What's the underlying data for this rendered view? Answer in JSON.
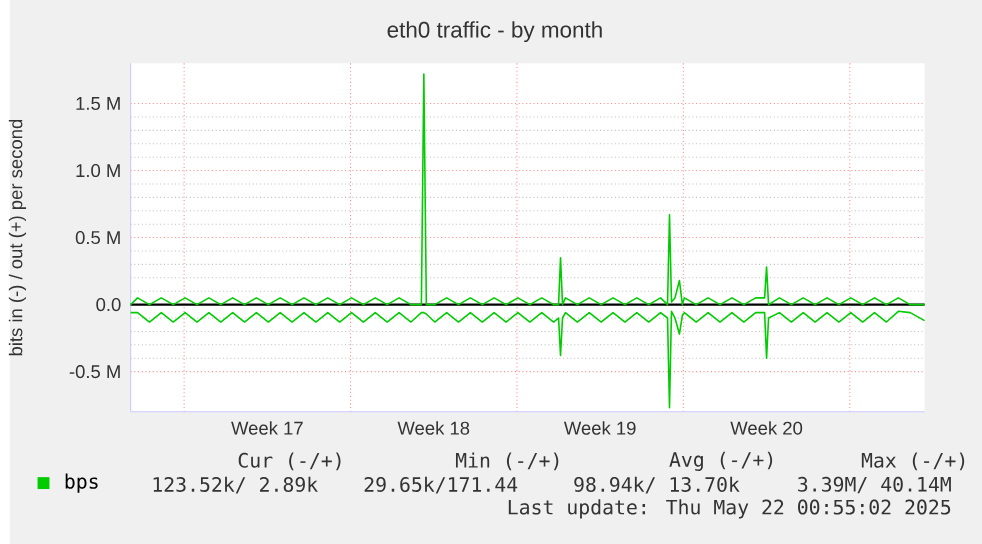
{
  "chart_data": {
    "type": "line",
    "title": "eth0 traffic - by month",
    "ylabel": "bits in (-) / out (+) per second",
    "x": [
      "2025-04-18T18:00",
      "2025-04-19T01:00",
      "2025-04-19T13:00",
      "2025-04-20T01:00",
      "2025-04-20T13:00",
      "2025-04-21T01:00",
      "2025-04-21T13:00",
      "2025-04-22T01:00",
      "2025-04-22T13:00",
      "2025-04-23T01:00",
      "2025-04-23T13:00",
      "2025-04-24T01:00",
      "2025-04-24T13:00",
      "2025-04-25T01:00",
      "2025-04-25T13:00",
      "2025-04-26T01:00",
      "2025-04-26T13:00",
      "2025-04-27T01:00",
      "2025-04-27T13:00",
      "2025-04-28T01:00",
      "2025-04-28T13:00",
      "2025-04-29T01:00",
      "2025-04-29T13:00",
      "2025-04-30T01:00",
      "2025-04-30T13:00",
      "2025-04-30T23:30",
      "2025-05-01T02:00",
      "2025-05-01T04:30",
      "2025-05-01T13:00",
      "2025-05-02T01:00",
      "2025-05-02T13:00",
      "2025-05-03T01:00",
      "2025-05-03T13:00",
      "2025-05-04T01:00",
      "2025-05-04T13:00",
      "2025-05-05T01:00",
      "2025-05-05T13:00",
      "2025-05-06T01:00",
      "2025-05-06T13:00",
      "2025-05-06T18:00",
      "2025-05-06T20:00",
      "2025-05-06T22:00",
      "2025-05-07T01:00",
      "2025-05-07T13:00",
      "2025-05-08T01:00",
      "2025-05-08T13:00",
      "2025-05-09T01:00",
      "2025-05-09T13:00",
      "2025-05-10T01:00",
      "2025-05-10T13:00",
      "2025-05-11T01:00",
      "2025-05-11T08:00",
      "2025-05-11T10:00",
      "2025-05-11T12:00",
      "2025-05-11T15:30",
      "2025-05-11T20:00",
      "2025-05-11T23:00",
      "2025-05-12T01:00",
      "2025-05-12T13:00",
      "2025-05-13T01:00",
      "2025-05-13T13:00",
      "2025-05-14T01:00",
      "2025-05-14T13:00",
      "2025-05-15T01:00",
      "2025-05-15T10:00",
      "2025-05-15T12:00",
      "2025-05-15T14:00",
      "2025-05-16T01:00",
      "2025-05-16T13:00",
      "2025-05-17T01:00",
      "2025-05-17T13:00",
      "2025-05-18T01:00",
      "2025-05-18T13:00",
      "2025-05-19T01:00",
      "2025-05-19T13:00",
      "2025-05-20T01:00",
      "2025-05-20T13:00",
      "2025-05-21T01:00",
      "2025-05-21T13:00",
      "2025-05-22T03:30"
    ],
    "series": [
      {
        "name": "bps",
        "color": "#00cc00",
        "values": [
          0,
          0.05,
          0,
          0.05,
          0,
          0.05,
          0,
          0.05,
          0,
          0.05,
          0,
          0.05,
          0,
          0.05,
          0,
          0.05,
          0,
          0.05,
          0,
          0.05,
          0,
          0.05,
          0,
          0.05,
          0,
          0,
          1.72,
          0,
          0,
          0.05,
          0,
          0.05,
          0,
          0.05,
          0,
          0.05,
          0,
          0.05,
          0,
          0,
          0.35,
          0,
          0.05,
          0,
          0.05,
          0,
          0.05,
          0,
          0.05,
          0,
          0.05,
          0,
          0.67,
          0.02,
          0.05,
          0.18,
          0,
          0.05,
          0,
          0.05,
          0,
          0.05,
          0,
          0.05,
          0.05,
          0.28,
          0,
          0.05,
          0,
          0.05,
          0,
          0.05,
          0,
          0.05,
          0,
          0.05,
          0,
          0.05,
          0,
          0
        ]
      },
      {
        "color": "#00cc00",
        "values": [
          -0.06,
          -0.06,
          -0.13,
          -0.06,
          -0.13,
          -0.06,
          -0.13,
          -0.06,
          -0.13,
          -0.06,
          -0.13,
          -0.06,
          -0.13,
          -0.06,
          -0.13,
          -0.06,
          -0.13,
          -0.06,
          -0.13,
          -0.06,
          -0.13,
          -0.06,
          -0.13,
          -0.06,
          -0.13,
          -0.06,
          -0.06,
          -0.07,
          -0.13,
          -0.06,
          -0.13,
          -0.06,
          -0.13,
          -0.06,
          -0.13,
          -0.06,
          -0.13,
          -0.06,
          -0.13,
          -0.1,
          -0.38,
          -0.1,
          -0.06,
          -0.13,
          -0.06,
          -0.13,
          -0.06,
          -0.13,
          -0.06,
          -0.13,
          -0.06,
          -0.1,
          -0.77,
          -0.05,
          -0.1,
          -0.22,
          -0.08,
          -0.06,
          -0.13,
          -0.06,
          -0.13,
          -0.06,
          -0.13,
          -0.06,
          -0.06,
          -0.4,
          -0.1,
          -0.06,
          -0.13,
          -0.06,
          -0.13,
          -0.06,
          -0.13,
          -0.06,
          -0.13,
          -0.06,
          -0.13,
          -0.05,
          -0.06,
          -0.12
        ]
      }
    ],
    "xlim": [
      "2025-04-18T18:00",
      "2025-05-22T03:30"
    ],
    "xticks": [
      {
        "value": "2025-04-21",
        "label": null
      },
      {
        "value": "2025-04-24T12:00",
        "label": "Week 17"
      },
      {
        "value": "2025-04-28",
        "label": null
      },
      {
        "value": "2025-05-01T12:00",
        "label": "Week 18"
      },
      {
        "value": "2025-05-05",
        "label": null
      },
      {
        "value": "2025-05-08T12:00",
        "label": "Week 19"
      },
      {
        "value": "2025-05-12",
        "label": null
      },
      {
        "value": "2025-05-15T12:00",
        "label": "Week 20"
      },
      {
        "value": "2025-05-19",
        "label": null
      }
    ],
    "ylim": [
      -0.8,
      1.8
    ],
    "yticks": [
      {
        "value": -0.5,
        "label": "-0.5 M"
      },
      {
        "value": 0,
        "label": "0.0"
      },
      {
        "value": 0.5,
        "label": "0.5 M"
      },
      {
        "value": 1,
        "label": "1.0 M"
      },
      {
        "value": 1.5,
        "label": "1.5 M"
      }
    ],
    "ref_lines": [
      {
        "axis": "y",
        "value": 0,
        "color": "#000000"
      }
    ],
    "grid": true,
    "legend": "bottom left",
    "line_style": "solid",
    "marker": "none",
    "annotations": [
      "Cur (-/+)",
      "Min (-/+)",
      "Avg (-/+)",
      "Max (-/+)",
      "123.52k/ 2.89k",
      "29.65k/171.44",
      "98.94k/ 13.70k",
      "3.39M/ 40.14M",
      "Last update: Thu May 22 00:55:02 2025"
    ]
  }
}
